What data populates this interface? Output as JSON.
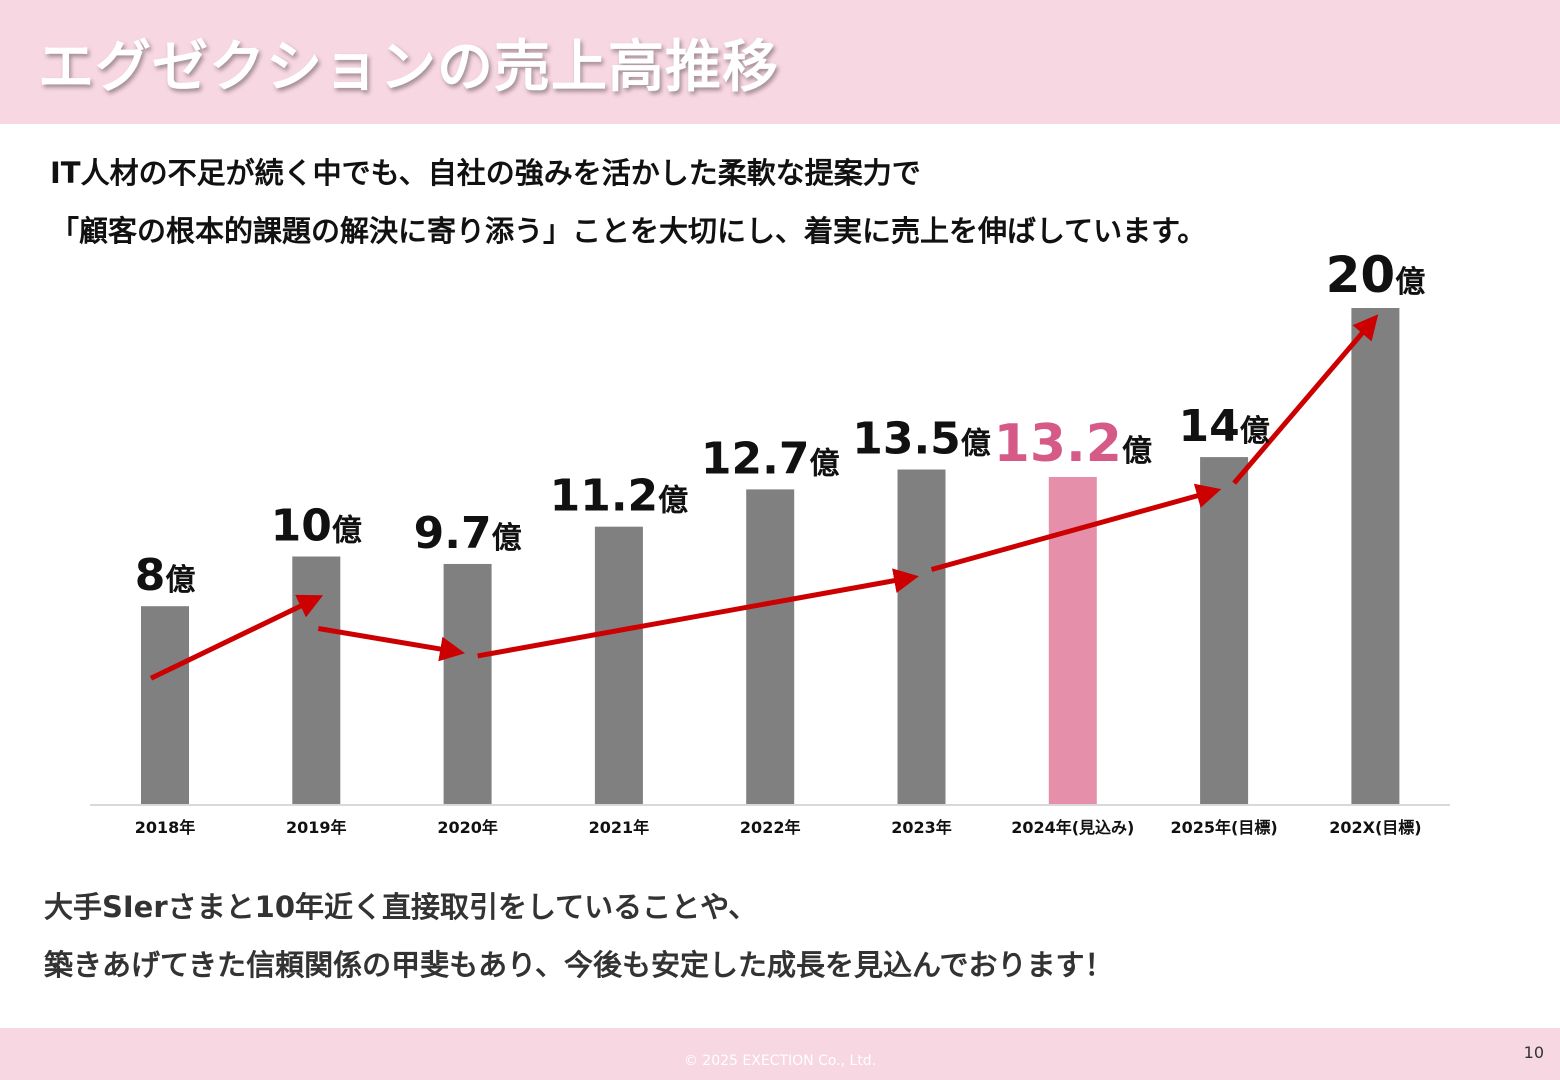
{
  "title": "エグゼクションの売上高推移",
  "lead": {
    "line1": "IT人材の不足が続く中でも、自社の強みを活かした柔軟な提案力で",
    "line2": "「顧客の根本的課題の解決に寄り添う」ことを大切にし、着実に売上を伸ばしています。"
  },
  "closing": {
    "line1": "大手SIerさまと10年近く直接取引をしていることや、",
    "line2": "築きあげてきた信頼関係の甲斐もあり、今後も安定した成長を見込んでおります！"
  },
  "footer": {
    "copyright": "© 2025 EXECTION Co., Ltd.",
    "page_number": "10"
  },
  "chart_data": {
    "type": "bar",
    "title": "",
    "xlabel": "",
    "ylabel": "",
    "unit": "億",
    "ylim": [
      0,
      20
    ],
    "categories": [
      "2018年",
      "2019年",
      "2020年",
      "2021年",
      "2022年",
      "2023年",
      "2024年(見込み)",
      "2025年(目標)",
      "202X(目標)"
    ],
    "values": [
      8,
      10,
      9.7,
      11.2,
      12.7,
      13.5,
      13.2,
      14,
      20
    ],
    "value_labels": [
      "8",
      "10",
      "9.7",
      "11.2",
      "12.7",
      "13.5",
      "13.2",
      "14",
      "20"
    ],
    "highlight_index": 6,
    "colors": {
      "bar": "#808080",
      "highlight_bar": "#e58faa",
      "highlight_label": "#d65a87",
      "trend_arrow": "#cc0000",
      "axis": "#d9d9d9"
    },
    "trend_arrows": [
      {
        "from": 0,
        "to": 1
      },
      {
        "from": 1,
        "to": 2
      },
      {
        "from": 2,
        "to": 5
      },
      {
        "from": 5,
        "to": 7
      },
      {
        "from": 7,
        "to": 8
      }
    ]
  }
}
